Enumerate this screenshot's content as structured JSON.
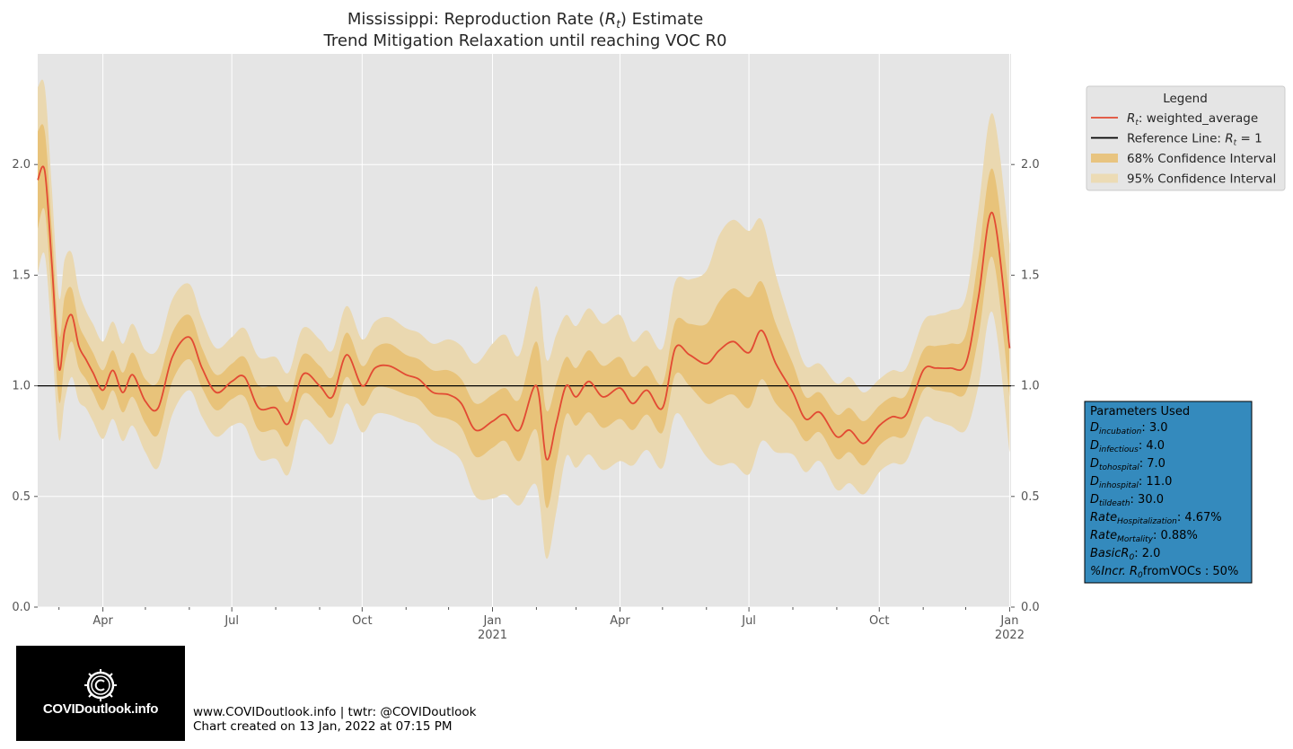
{
  "chart_data": {
    "type": "line",
    "title": "Mississippi: Reproduction Rate (R_t) Estimate",
    "subtitle": "Trend Mitigation Relaxation until reaching VOC R0",
    "title_parts": {
      "before": "Mississippi: Reproduction Rate (",
      "italic": "R",
      "sub": "t",
      "after": ") Estimate"
    },
    "xlabel": "",
    "ylabel": "",
    "x_range": [
      "2020-02-15",
      "2022-01-02"
    ],
    "ylim": [
      0,
      2.5
    ],
    "yticks": [
      "0.0",
      "0.5",
      "1.0",
      "1.5",
      "2.0"
    ],
    "xticks": [
      {
        "date": "2020-04-01",
        "label": "Apr",
        "label2": ""
      },
      {
        "date": "2020-07-01",
        "label": "Jul",
        "label2": ""
      },
      {
        "date": "2020-10-01",
        "label": "Oct",
        "label2": ""
      },
      {
        "date": "2021-01-01",
        "label": "Jan",
        "label2": "2021"
      },
      {
        "date": "2021-04-01",
        "label": "Apr",
        "label2": ""
      },
      {
        "date": "2021-07-01",
        "label": "Jul",
        "label2": ""
      },
      {
        "date": "2021-10-01",
        "label": "Oct",
        "label2": ""
      },
      {
        "date": "2022-01-01",
        "label": "Jan",
        "label2": "2022"
      }
    ],
    "minor_ticks": [
      "2020-03-01",
      "2020-05-01",
      "2020-06-01",
      "2020-08-01",
      "2020-09-01",
      "2020-11-01",
      "2020-12-01",
      "2021-02-01",
      "2021-03-01",
      "2021-05-01",
      "2021-06-01",
      "2021-08-01",
      "2021-09-01",
      "2021-11-01",
      "2021-12-01"
    ],
    "grid": true,
    "reference_line": 1.0,
    "legend_position": "outside-right",
    "legend": {
      "title": "Legend",
      "items": [
        {
          "pre": "",
          "italic": "R",
          "sub": "t",
          "post": ": weighted_average",
          "kind": "line",
          "color": "#e24a33"
        },
        {
          "pre": "Reference Line: ",
          "italic": "R",
          "sub": "t",
          "post": " = 1",
          "kind": "line",
          "color": "#000000"
        },
        {
          "pre": "68% Confidence Interval",
          "italic": "",
          "sub": "",
          "post": "",
          "kind": "band",
          "color": "#e8c480"
        },
        {
          "pre": "95% Confidence Interval",
          "italic": "",
          "sub": "",
          "post": "",
          "kind": "band",
          "color": "#ecdbb5"
        }
      ]
    },
    "colors": {
      "line": "#e24a33",
      "ci68": "#e8c071",
      "ci95": "#ead8b0",
      "plot_bg": "#e5e5e5",
      "params_bg": "#348abd"
    },
    "series": [
      {
        "name": "R_t: weighted_average",
        "x": [
          "2020-02-15",
          "2020-02-20",
          "2020-02-25",
          "2020-03-01",
          "2020-03-05",
          "2020-03-10",
          "2020-03-15",
          "2020-03-20",
          "2020-03-25",
          "2020-04-01",
          "2020-04-08",
          "2020-04-15",
          "2020-04-22",
          "2020-05-01",
          "2020-05-10",
          "2020-05-20",
          "2020-06-01",
          "2020-06-10",
          "2020-06-20",
          "2020-07-01",
          "2020-07-10",
          "2020-07-20",
          "2020-08-01",
          "2020-08-10",
          "2020-08-20",
          "2020-09-01",
          "2020-09-10",
          "2020-09-20",
          "2020-10-01",
          "2020-10-10",
          "2020-10-20",
          "2020-11-01",
          "2020-11-10",
          "2020-11-20",
          "2020-12-01",
          "2020-12-10",
          "2020-12-20",
          "2021-01-01",
          "2021-01-10",
          "2021-01-20",
          "2021-02-01",
          "2021-02-08",
          "2021-02-15",
          "2021-02-22",
          "2021-03-01",
          "2021-03-10",
          "2021-03-20",
          "2021-04-01",
          "2021-04-10",
          "2021-04-20",
          "2021-05-01",
          "2021-05-10",
          "2021-05-20",
          "2021-06-01",
          "2021-06-10",
          "2021-06-20",
          "2021-07-01",
          "2021-07-10",
          "2021-07-20",
          "2021-08-01",
          "2021-08-10",
          "2021-08-20",
          "2021-09-01",
          "2021-09-10",
          "2021-09-20",
          "2021-10-01",
          "2021-10-10",
          "2021-10-20",
          "2021-11-01",
          "2021-11-10",
          "2021-11-20",
          "2021-12-01",
          "2021-12-10",
          "2021-12-20",
          "2022-01-01"
        ],
        "values": [
          1.93,
          1.97,
          1.55,
          1.08,
          1.25,
          1.32,
          1.18,
          1.12,
          1.06,
          0.98,
          1.07,
          0.97,
          1.05,
          0.93,
          0.9,
          1.13,
          1.22,
          1.08,
          0.97,
          1.02,
          1.04,
          0.9,
          0.9,
          0.83,
          1.05,
          1.0,
          0.95,
          1.14,
          1.0,
          1.08,
          1.09,
          1.05,
          1.03,
          0.97,
          0.96,
          0.92,
          0.8,
          0.84,
          0.87,
          0.8,
          1.0,
          0.67,
          0.83,
          1.0,
          0.95,
          1.02,
          0.95,
          0.99,
          0.92,
          0.98,
          0.9,
          1.17,
          1.14,
          1.1,
          1.16,
          1.2,
          1.15,
          1.25,
          1.1,
          0.97,
          0.85,
          0.88,
          0.77,
          0.8,
          0.74,
          0.82,
          0.86,
          0.87,
          1.07,
          1.08,
          1.08,
          1.1,
          1.4,
          1.78,
          1.17
        ]
      },
      {
        "name": "68% Confidence Interval",
        "halfwidth68": [
          0.22,
          0.18,
          0.16,
          0.15,
          0.15,
          0.12,
          0.1,
          0.09,
          0.09,
          0.09,
          0.09,
          0.09,
          0.1,
          0.1,
          0.12,
          0.11,
          0.1,
          0.09,
          0.08,
          0.08,
          0.09,
          0.1,
          0.1,
          0.1,
          0.09,
          0.09,
          0.09,
          0.1,
          0.09,
          0.09,
          0.1,
          0.09,
          0.09,
          0.1,
          0.11,
          0.11,
          0.12,
          0.12,
          0.12,
          0.14,
          0.2,
          0.22,
          0.18,
          0.13,
          0.13,
          0.14,
          0.14,
          0.14,
          0.12,
          0.11,
          0.11,
          0.12,
          0.14,
          0.18,
          0.22,
          0.24,
          0.25,
          0.22,
          0.18,
          0.13,
          0.1,
          0.09,
          0.1,
          0.1,
          0.1,
          0.09,
          0.09,
          0.09,
          0.09,
          0.1,
          0.11,
          0.13,
          0.18,
          0.2,
          0.22
        ]
      },
      {
        "name": "95% Confidence Interval",
        "halfwidth95": [
          0.42,
          0.38,
          0.34,
          0.32,
          0.32,
          0.28,
          0.25,
          0.22,
          0.22,
          0.22,
          0.22,
          0.22,
          0.23,
          0.23,
          0.27,
          0.26,
          0.24,
          0.22,
          0.2,
          0.2,
          0.22,
          0.23,
          0.23,
          0.23,
          0.21,
          0.21,
          0.21,
          0.22,
          0.21,
          0.21,
          0.22,
          0.21,
          0.21,
          0.22,
          0.25,
          0.26,
          0.3,
          0.35,
          0.36,
          0.34,
          0.45,
          0.45,
          0.4,
          0.32,
          0.32,
          0.33,
          0.33,
          0.33,
          0.28,
          0.27,
          0.27,
          0.3,
          0.34,
          0.42,
          0.52,
          0.55,
          0.55,
          0.5,
          0.4,
          0.28,
          0.24,
          0.22,
          0.24,
          0.24,
          0.23,
          0.21,
          0.21,
          0.21,
          0.22,
          0.24,
          0.26,
          0.3,
          0.4,
          0.45,
          0.47
        ]
      }
    ]
  },
  "params": {
    "title": "Parameters Used",
    "rows": [
      {
        "name": "D",
        "sub": "incubation",
        "value": ": 3.0"
      },
      {
        "name": "D",
        "sub": "infectious",
        "value": ": 4.0"
      },
      {
        "name": "D",
        "sub": "tohospital",
        "value": ": 7.0"
      },
      {
        "name": "D",
        "sub": "inhospital",
        "value": ": 11.0"
      },
      {
        "name": "D",
        "sub": "tildeath",
        "value": ": 30.0"
      },
      {
        "name": "Rate",
        "sub": "Hospitalization",
        "value": ": 4.67%"
      },
      {
        "name": "Rate",
        "sub": "Mortality",
        "value": ": 0.88%"
      },
      {
        "name": "BasicR",
        "sub": "0",
        "value": ": 2.0"
      },
      {
        "name": "%Incr. R",
        "sub": "0",
        "value": "fromVOCs : 50%"
      }
    ]
  },
  "footer": {
    "line1": "www.COVIDoutlook.info | twtr: @COVIDoutlook",
    "line2": "Chart created on 13 Jan, 2022 at 07:15 PM"
  },
  "logo": {
    "text": "COVIDoutlook.info",
    "icon": "virus-c-icon"
  }
}
